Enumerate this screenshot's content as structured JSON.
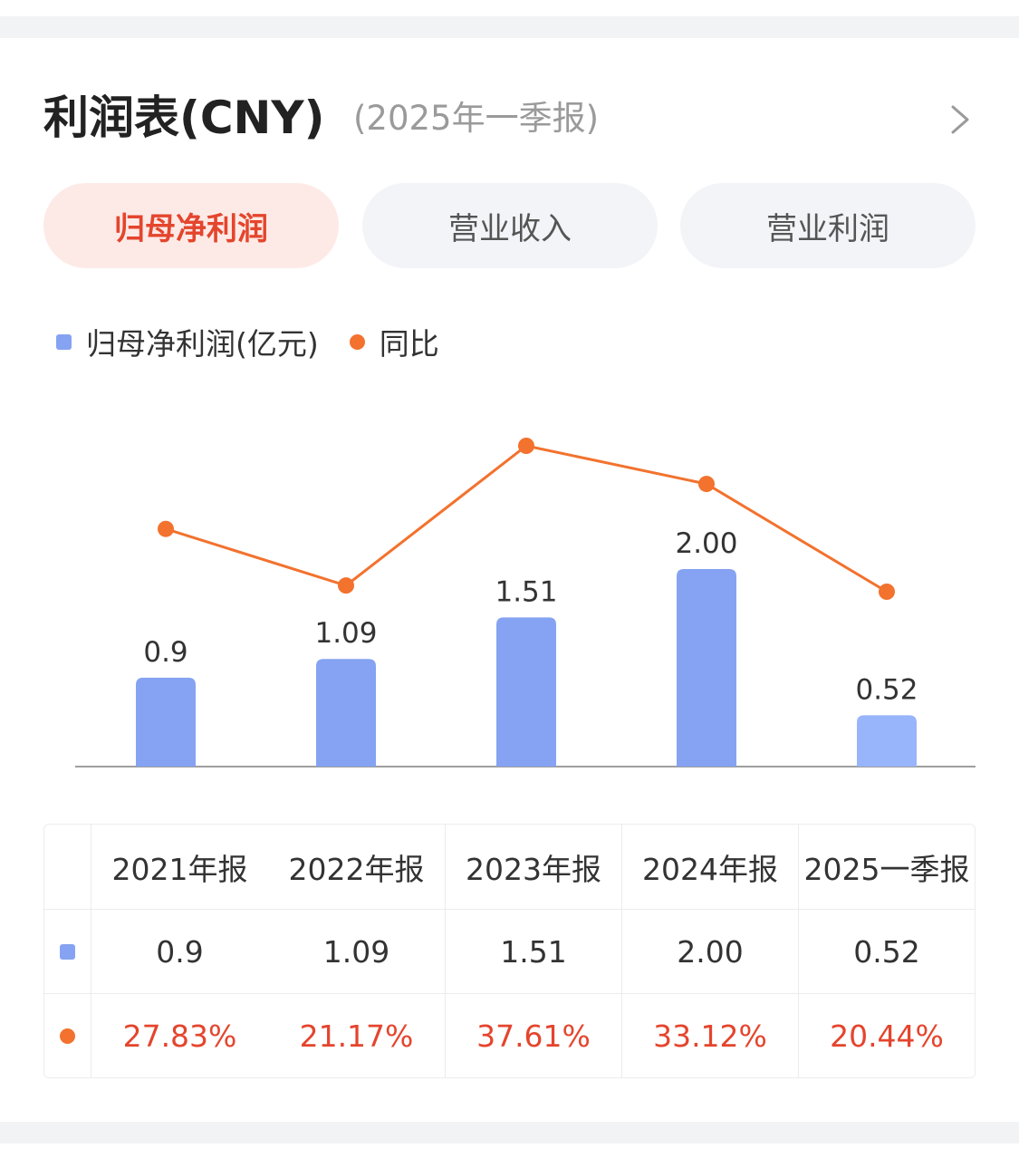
{
  "header": {
    "title": "利润表(CNY)",
    "subtitle": "(2025年一季报)"
  },
  "tabs": [
    {
      "label": "归母净利润",
      "active": true
    },
    {
      "label": "营业收入",
      "active": false
    },
    {
      "label": "营业利润",
      "active": false
    }
  ],
  "legend": {
    "bar": "归母净利润(亿元)",
    "line": "同比"
  },
  "colors": {
    "bar": "#85a3f2",
    "bar_latest": "#98b5fb",
    "line": "#f2722e",
    "accent": "#e4452d"
  },
  "chart_data": {
    "type": "bar",
    "categories": [
      "2021年报",
      "2022年报",
      "2023年报",
      "2024年报",
      "2025一季报"
    ],
    "series": [
      {
        "name": "归母净利润(亿元)",
        "type": "bar",
        "values": [
          0.9,
          1.09,
          1.51,
          2.0,
          0.52
        ],
        "labels": [
          "0.9",
          "1.09",
          "1.51",
          "2.00",
          "0.52"
        ]
      },
      {
        "name": "同比",
        "type": "line",
        "values": [
          27.83,
          21.17,
          37.61,
          33.12,
          20.44
        ],
        "labels": [
          "27.83%",
          "21.17%",
          "37.61%",
          "33.12%",
          "20.44%"
        ]
      }
    ],
    "legend_position": "top-left",
    "grid": false
  },
  "table": {
    "headers": [
      "2021年报",
      "2022年报",
      "2023年报",
      "2024年报",
      "2025一季报"
    ],
    "profit_row": [
      "0.9",
      "1.09",
      "1.51",
      "2.00",
      "0.52"
    ],
    "yoy_row": [
      "27.83%",
      "21.17%",
      "37.61%",
      "33.12%",
      "20.44%"
    ]
  }
}
